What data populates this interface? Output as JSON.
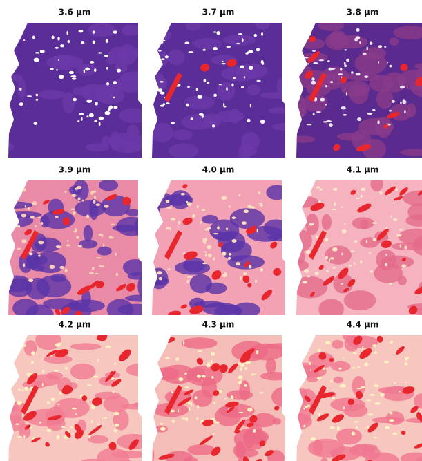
{
  "panels": [
    {
      "label": "3.6 µm"
    },
    {
      "label": "3.7 µm"
    },
    {
      "label": "3.8 µm"
    },
    {
      "label": "3.9 µm"
    },
    {
      "label": "4.0 µm"
    },
    {
      "label": "4.1 µm"
    },
    {
      "label": "4.2 µm"
    },
    {
      "label": "4.3 µm"
    },
    {
      "label": "4.4 µm"
    }
  ]
}
